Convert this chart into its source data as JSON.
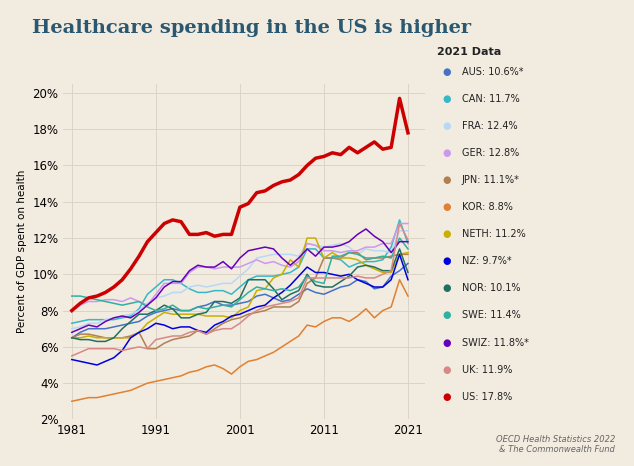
{
  "title": "Healthcare spending in the US is higher",
  "ylabel": "Percent of GDP spent on health",
  "source": "OECD Health Statistics 2022\n& The Commonwealth Fund",
  "legend_title": "2021 Data",
  "background_color": "#f2ebe0",
  "grid_color": "#d8cfc0",
  "years": [
    1981,
    1982,
    1983,
    1984,
    1985,
    1986,
    1987,
    1988,
    1989,
    1990,
    1991,
    1992,
    1993,
    1994,
    1995,
    1996,
    1997,
    1998,
    1999,
    2000,
    2001,
    2002,
    2003,
    2004,
    2005,
    2006,
    2007,
    2008,
    2009,
    2010,
    2011,
    2012,
    2013,
    2014,
    2015,
    2016,
    2017,
    2018,
    2019,
    2020,
    2021
  ],
  "series": {
    "AUS": {
      "label": "AUS: 10.6%*",
      "color": "#4472C4",
      "data": [
        6.5,
        6.8,
        7.0,
        7.0,
        7.0,
        7.1,
        7.2,
        7.3,
        7.4,
        7.7,
        7.9,
        8.0,
        8.1,
        8.0,
        8.0,
        8.2,
        8.3,
        8.5,
        8.3,
        8.3,
        8.4,
        8.5,
        8.8,
        8.9,
        8.7,
        8.5,
        8.6,
        8.9,
        9.2,
        9.0,
        8.9,
        9.1,
        9.3,
        9.4,
        9.7,
        9.6,
        9.2,
        9.3,
        9.9,
        10.2,
        10.6
      ]
    },
    "CAN": {
      "label": "CAN: 11.7%",
      "color": "#36B8C8",
      "data": [
        7.3,
        7.4,
        7.5,
        7.5,
        7.5,
        7.5,
        7.6,
        7.7,
        8.1,
        8.9,
        9.3,
        9.7,
        9.7,
        9.5,
        9.2,
        9.0,
        9.0,
        9.1,
        9.1,
        8.9,
        9.3,
        9.7,
        9.9,
        9.9,
        9.9,
        10.0,
        10.1,
        10.4,
        11.4,
        11.4,
        10.9,
        10.9,
        10.8,
        10.4,
        10.6,
        10.7,
        10.7,
        10.8,
        11.5,
        13.0,
        11.7
      ]
    },
    "FRA": {
      "label": "FRA: 12.4%",
      "color": "#b8d8f8",
      "data": [
        7.0,
        7.1,
        7.3,
        7.3,
        7.5,
        7.6,
        7.7,
        7.8,
        8.0,
        8.4,
        8.7,
        8.8,
        9.0,
        9.0,
        9.3,
        9.4,
        9.3,
        9.4,
        9.5,
        9.5,
        9.9,
        10.3,
        10.9,
        11.0,
        11.1,
        11.1,
        11.1,
        11.0,
        11.7,
        11.6,
        11.5,
        11.6,
        11.7,
        11.5,
        11.1,
        11.4,
        11.3,
        11.3,
        11.2,
        12.4,
        12.4
      ]
    },
    "GER": {
      "label": "GER: 12.8%",
      "color": "#cc99ee",
      "data": [
        8.0,
        8.3,
        8.5,
        8.5,
        8.6,
        8.6,
        8.5,
        8.7,
        8.5,
        8.3,
        8.9,
        9.5,
        9.5,
        9.5,
        10.1,
        10.4,
        10.4,
        10.3,
        10.4,
        10.4,
        10.4,
        10.6,
        10.8,
        10.6,
        10.7,
        10.5,
        10.4,
        10.7,
        11.7,
        11.6,
        11.3,
        11.3,
        11.2,
        11.3,
        11.3,
        11.5,
        11.5,
        11.7,
        11.7,
        12.8,
        12.8
      ]
    },
    "JPN": {
      "label": "JPN: 11.1%*",
      "color": "#b08050",
      "data": [
        6.5,
        6.7,
        6.7,
        6.6,
        6.5,
        6.5,
        6.5,
        6.6,
        6.8,
        5.9,
        5.9,
        6.2,
        6.4,
        6.5,
        6.6,
        6.9,
        6.7,
        7.0,
        7.3,
        7.5,
        7.6,
        7.8,
        7.9,
        8.0,
        8.2,
        8.2,
        8.2,
        8.5,
        9.5,
        9.8,
        10.9,
        10.9,
        10.9,
        11.2,
        11.2,
        10.8,
        10.9,
        10.9,
        11.0,
        11.1,
        11.1
      ]
    },
    "KOR": {
      "label": "KOR: 8.8%",
      "color": "#e08030",
      "data": [
        3.0,
        3.1,
        3.2,
        3.2,
        3.3,
        3.4,
        3.5,
        3.6,
        3.8,
        4.0,
        4.1,
        4.2,
        4.3,
        4.4,
        4.6,
        4.7,
        4.9,
        5.0,
        4.8,
        4.5,
        4.9,
        5.2,
        5.3,
        5.5,
        5.7,
        6.0,
        6.3,
        6.6,
        7.2,
        7.1,
        7.4,
        7.6,
        7.6,
        7.4,
        7.7,
        8.1,
        7.6,
        8.0,
        8.2,
        9.7,
        8.8
      ]
    },
    "NETH": {
      "label": "NETH: 11.2%",
      "color": "#c8b000",
      "data": [
        6.5,
        6.5,
        6.6,
        6.5,
        6.5,
        6.5,
        6.5,
        6.5,
        6.8,
        7.3,
        7.6,
        7.9,
        7.8,
        7.8,
        7.8,
        7.8,
        7.7,
        7.7,
        7.7,
        7.6,
        8.0,
        8.2,
        9.1,
        9.2,
        9.8,
        10.0,
        10.8,
        10.4,
        12.0,
        12.0,
        10.9,
        11.2,
        10.9,
        10.9,
        10.8,
        10.5,
        10.3,
        10.1,
        10.1,
        11.1,
        11.2
      ]
    },
    "NZ": {
      "label": "NZ: 9.7%*",
      "color": "#0000dd",
      "data": [
        5.3,
        5.2,
        5.1,
        5.0,
        5.2,
        5.4,
        5.8,
        6.5,
        6.8,
        7.0,
        7.3,
        7.2,
        7.0,
        7.1,
        7.1,
        6.9,
        6.8,
        7.2,
        7.4,
        7.7,
        7.8,
        8.0,
        8.2,
        8.3,
        8.7,
        9.0,
        9.4,
        9.9,
        10.4,
        10.1,
        10.1,
        10.0,
        9.9,
        10.0,
        9.7,
        9.5,
        9.3,
        9.3,
        9.7,
        11.1,
        9.7
      ]
    },
    "NOR": {
      "label": "NOR: 10.1%",
      "color": "#207060",
      "data": [
        6.5,
        6.4,
        6.4,
        6.3,
        6.3,
        6.5,
        7.0,
        7.4,
        7.8,
        7.8,
        8.0,
        8.3,
        8.1,
        7.6,
        7.6,
        7.8,
        7.9,
        8.5,
        8.5,
        8.4,
        8.7,
        9.7,
        9.7,
        9.7,
        9.2,
        8.6,
        8.9,
        9.1,
        10.0,
        9.4,
        9.3,
        9.3,
        9.6,
        9.9,
        10.4,
        10.5,
        10.4,
        10.2,
        10.2,
        11.4,
        10.1
      ]
    },
    "SWE": {
      "label": "SWE: 11.4%",
      "color": "#30b0a0",
      "data": [
        8.8,
        8.8,
        8.7,
        8.6,
        8.5,
        8.4,
        8.3,
        8.4,
        8.5,
        8.2,
        8.0,
        8.1,
        8.3,
        8.0,
        8.0,
        8.2,
        8.1,
        8.2,
        8.3,
        8.2,
        8.6,
        9.0,
        9.3,
        9.2,
        9.1,
        9.2,
        9.1,
        9.3,
        9.9,
        9.6,
        9.5,
        11.0,
        11.0,
        11.2,
        11.1,
        10.9,
        10.9,
        11.0,
        10.9,
        12.0,
        11.4
      ]
    },
    "SWIZ": {
      "label": "SWIZ: 11.8%*",
      "color": "#6600bb",
      "data": [
        6.8,
        7.0,
        7.2,
        7.1,
        7.4,
        7.6,
        7.7,
        7.6,
        7.9,
        8.3,
        8.7,
        9.3,
        9.6,
        9.6,
        10.2,
        10.5,
        10.4,
        10.4,
        10.7,
        10.3,
        10.9,
        11.3,
        11.4,
        11.5,
        11.4,
        10.9,
        10.5,
        10.9,
        11.4,
        11.0,
        11.5,
        11.5,
        11.6,
        11.8,
        12.2,
        12.5,
        12.1,
        11.8,
        11.2,
        11.8,
        11.8
      ]
    },
    "UK": {
      "label": "UK: 11.9%",
      "color": "#d88888",
      "data": [
        5.5,
        5.7,
        5.9,
        5.9,
        5.9,
        5.9,
        5.8,
        5.9,
        6.0,
        5.9,
        6.4,
        6.5,
        6.6,
        6.6,
        6.8,
        6.9,
        6.7,
        6.9,
        7.0,
        7.0,
        7.3,
        7.7,
        8.0,
        8.2,
        8.3,
        8.4,
        8.5,
        8.7,
        9.8,
        9.8,
        9.8,
        9.8,
        9.8,
        9.8,
        9.9,
        9.8,
        9.8,
        10.0,
        10.2,
        12.8,
        11.9
      ]
    },
    "US": {
      "label": "US: 17.8%",
      "color": "#cc0000",
      "data": [
        8.0,
        8.4,
        8.7,
        8.8,
        9.0,
        9.3,
        9.7,
        10.3,
        11.0,
        11.8,
        12.3,
        12.8,
        13.0,
        12.9,
        12.2,
        12.2,
        12.3,
        12.1,
        12.2,
        12.2,
        13.7,
        13.9,
        14.5,
        14.6,
        14.9,
        15.1,
        15.2,
        15.5,
        16.0,
        16.4,
        16.5,
        16.7,
        16.6,
        17.0,
        16.7,
        17.0,
        17.3,
        16.9,
        17.0,
        19.7,
        17.8
      ]
    }
  },
  "ylim": [
    2,
    20.5
  ],
  "yticks": [
    2,
    4,
    6,
    8,
    10,
    12,
    14,
    16,
    18,
    20
  ],
  "xlim": [
    1980,
    2023
  ],
  "xticks": [
    1981,
    1991,
    2001,
    2011,
    2021
  ]
}
